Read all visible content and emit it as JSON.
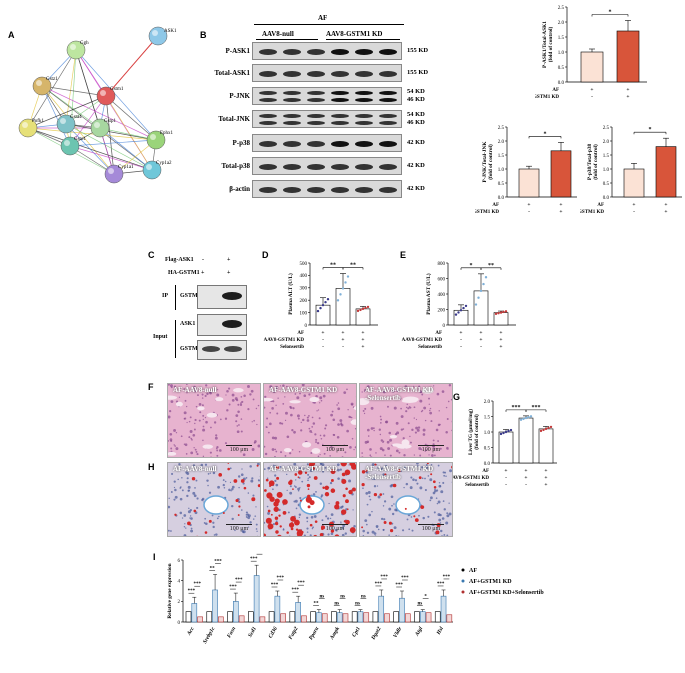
{
  "panels": {
    "A": "A",
    "B": "B",
    "C": "C",
    "D": "D",
    "E": "E",
    "F": "F",
    "G": "G",
    "H": "H",
    "I": "I"
  },
  "network": {
    "nodes": [
      "ASK1",
      "Ggh",
      "Gstz1",
      "Gstm1",
      "Pofk1",
      "Gsta4",
      "Gstp1",
      "Gsto1",
      "Ephx1",
      "Cyp1a2",
      "Cyp1a1"
    ],
    "colors": {
      "ASK1": "#8ec8e8",
      "Ggh": "#bde6a0",
      "Gstz1": "#d6b56a",
      "Gstm1": "#e05a5a",
      "Pofk1": "#e6e078",
      "Gsta4": "#7fc2c8",
      "Gstp1": "#a7d7a0",
      "Gsto1": "#6cc4b0",
      "Ephx1": "#9ad47a",
      "Cyp1a2": "#6fc7d9",
      "Cyp1a1": "#a58ad8"
    }
  },
  "blot": {
    "header_af": "AF",
    "group1": "AAV8-null",
    "group2": "AAV8-GSTM1 KD",
    "rows": [
      {
        "label": "P-ASK1",
        "kd": "155 KD"
      },
      {
        "label": "Total-ASK1",
        "kd": "155 KD"
      },
      {
        "label": "P-JNK",
        "kd": "54 KD\n46 KD"
      },
      {
        "label": "Total-JNK",
        "kd": "54 KD\n46 KD"
      },
      {
        "label": "P-p38",
        "kd": "42 KD"
      },
      {
        "label": "Total-p38",
        "kd": "42 KD"
      },
      {
        "label": "β-actin",
        "kd": "42 KD"
      }
    ]
  },
  "bar_common": {
    "row_af": "AF",
    "row_kd": "AAV8-GSTM1 KD",
    "row_sel": "Selonsertib",
    "plus": "+",
    "minus": "-",
    "star1": "*",
    "star2": "**",
    "star3": "***",
    "ns": "ns"
  },
  "chart_data": [
    {
      "type": "bar",
      "id": "B-ask1",
      "ylabel": "P-ASK1/Total-ASK1\n(fold of control)",
      "ylim": [
        0,
        2.5
      ],
      "ticks": [
        "0.0",
        "0.5",
        "1.0",
        "1.5",
        "2.0",
        "2.5"
      ],
      "categories": [
        "AF",
        "AF+AAV8-GSTM1 KD"
      ],
      "values": [
        1.0,
        1.7
      ],
      "errors": [
        0.1,
        0.35
      ],
      "colors": [
        "#fbe2d5",
        "#d8553a"
      ],
      "significance": "*"
    },
    {
      "type": "bar",
      "id": "B-jnk",
      "ylabel": "P-JNK/Total-JNK\n(fold of control)",
      "ylim": [
        0,
        2.5
      ],
      "ticks": [
        "0.0",
        "0.5",
        "1.0",
        "1.5",
        "2.0",
        "2.5"
      ],
      "categories": [
        "AF",
        "AF+AAV8-GSTM1 KD"
      ],
      "values": [
        1.0,
        1.65
      ],
      "errors": [
        0.1,
        0.3
      ],
      "colors": [
        "#fbe2d5",
        "#d8553a"
      ],
      "significance": "*"
    },
    {
      "type": "bar",
      "id": "B-p38",
      "ylabel": "P-p38/Total-p38\n(fold of control)",
      "ylim": [
        0,
        2.5
      ],
      "ticks": [
        "0.0",
        "0.5",
        "1.0",
        "1.5",
        "2.0",
        "2.5"
      ],
      "categories": [
        "AF",
        "AF+AAV8-GSTM1 KD"
      ],
      "values": [
        1.0,
        1.8
      ],
      "errors": [
        0.2,
        0.3
      ],
      "colors": [
        "#fbe2d5",
        "#d8553a"
      ],
      "significance": "*"
    },
    {
      "type": "bar",
      "id": "D",
      "ylabel": "Plasma ALT (U/L)",
      "ylim": [
        0,
        500
      ],
      "ticks": [
        "0",
        "100",
        "200",
        "300",
        "400",
        "500"
      ],
      "categories": [
        "AF",
        "AF+AAV8-GSTM1 KD",
        "AF+AAV8-GSTM1 KD+Selonsertib"
      ],
      "values": [
        160,
        295,
        130
      ],
      "errors": [
        60,
        120,
        20
      ],
      "colors": [
        "#ffffff",
        "#ffffff",
        "#ffffff"
      ],
      "significance": [
        "**",
        "**"
      ]
    },
    {
      "type": "bar",
      "id": "E",
      "ylabel": "Plasma AST (U/L)",
      "ylim": [
        0,
        800
      ],
      "ticks": [
        "0",
        "200",
        "400",
        "600",
        "800"
      ],
      "categories": [
        "AF",
        "AF+AAV8-GSTM1 KD",
        "AF+AAV8-GSTM1 KD+Selonsertib"
      ],
      "values": [
        190,
        440,
        160
      ],
      "errors": [
        70,
        220,
        20
      ],
      "colors": [
        "#ffffff",
        "#ffffff",
        "#ffffff"
      ],
      "significance": [
        "*",
        "**"
      ]
    },
    {
      "type": "bar",
      "id": "G",
      "ylabel": "Liver TG (μmol/mg)\n(fold of control)",
      "ylim": [
        0,
        2.0
      ],
      "ticks": [
        "0.0",
        "0.5",
        "1.0",
        "1.5",
        "2.0"
      ],
      "categories": [
        "AF",
        "AF+AAV8-GSTM1 KD",
        "AF+AAV8-GSTM1 KD+Selonsertib"
      ],
      "values": [
        1.0,
        1.45,
        1.1
      ],
      "errors": [
        0.08,
        0.07,
        0.08
      ],
      "colors": [
        "#ffffff",
        "#ffffff",
        "#ffffff"
      ],
      "significance": [
        "***",
        "***"
      ]
    },
    {
      "type": "bar",
      "id": "I",
      "ylabel": "Relative gene expression",
      "ylim": [
        0,
        6
      ],
      "ticks": [
        "0",
        "2",
        "4",
        "6"
      ],
      "categories": [
        "Acc",
        "Srebp1c",
        "Fasn",
        "Scd1",
        "Cd36",
        "Fatp2",
        "Pparα",
        "Ampk",
        "Cpt1",
        "Dgat2",
        "Vldlr",
        "Atgl",
        "Hsl"
      ],
      "series": [
        {
          "name": "AF",
          "values": [
            1,
            1,
            1,
            1,
            1,
            1,
            1,
            1,
            1,
            1,
            1,
            1,
            1
          ]
        },
        {
          "name": "AF+GSTM1 KD",
          "values": [
            1.8,
            3.1,
            2.0,
            4.5,
            2.5,
            1.9,
            0.9,
            0.9,
            1.0,
            2.5,
            2.3,
            1.0,
            2.5
          ]
        },
        {
          "name": "AF+GSTM1 KD+Selonsertib",
          "values": [
            0.5,
            0.5,
            0.6,
            0.5,
            0.8,
            0.6,
            0.8,
            0.8,
            0.9,
            0.8,
            0.8,
            0.9,
            0.7
          ]
        }
      ],
      "errors": [
        0.6,
        1.5,
        0.8,
        1.0,
        0.5,
        0.6,
        0.3,
        0.3,
        0.2,
        0.6,
        0.7,
        0.2,
        0.6
      ],
      "significance": [
        [
          "***",
          "***"
        ],
        [
          "**",
          "***"
        ],
        [
          "***",
          "***"
        ],
        [
          "***",
          "***"
        ],
        [
          "***",
          "***"
        ],
        [
          "***",
          "***"
        ],
        [
          "**",
          "ns"
        ],
        [
          "ns",
          "ns"
        ],
        [
          "ns",
          "ns"
        ],
        [
          "***",
          "***"
        ],
        [
          "***",
          "***"
        ],
        [
          "ns",
          "*"
        ],
        [
          "***",
          "***"
        ]
      ]
    }
  ],
  "coip": {
    "flag": "Flag-ASK1",
    "ha": "HA-GSTM1",
    "flag_signs": [
      "-",
      "+"
    ],
    "ha_signs": [
      "+",
      "+"
    ],
    "ip": "IP",
    "input": "Input",
    "rows": [
      "GSTM1",
      "ASK1",
      "GSTM1"
    ]
  },
  "micro": {
    "he": [
      "AF-AAV8-null",
      "AF-AAV8-GSTM1 KD",
      "AF-AAV8-GSTM1 KD\n-Selonsertib"
    ],
    "oro": [
      "AF-AAV8-null",
      "AF-AAV8-GSTM1 KD",
      "AF-AAV8-GSTM1 KD\n-Selonsertib"
    ],
    "scale": "100 μm"
  },
  "legendI": [
    "AF",
    "AF+GSTM1 KD",
    "AF+GSTM1 KD+Selonsertib"
  ]
}
